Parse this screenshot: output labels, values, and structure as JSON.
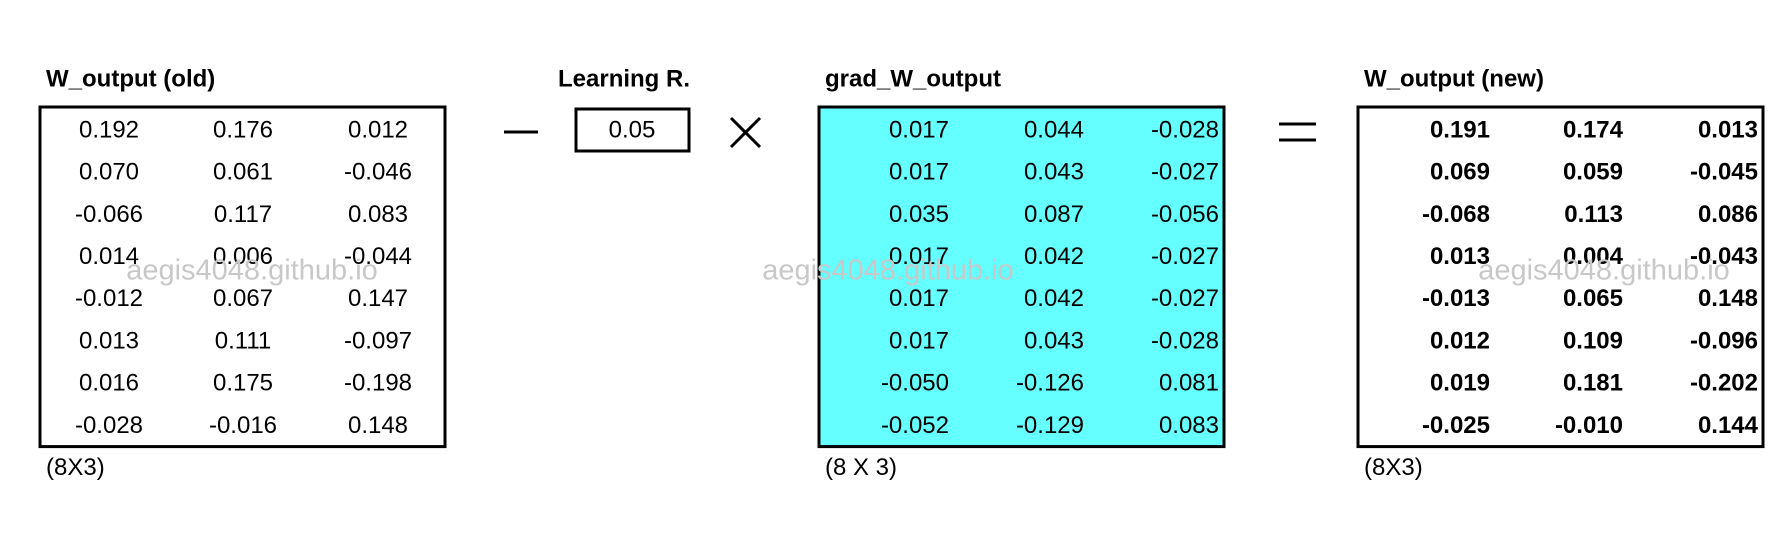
{
  "matrices": [
    {
      "title": "W_output (old)",
      "note": "(8X3)",
      "rows": [
        [
          "0.192",
          "0.176",
          "0.012"
        ],
        [
          "0.070",
          "0.061",
          "-0.046"
        ],
        [
          "-0.066",
          "0.117",
          "0.083"
        ],
        [
          "0.014",
          "0.006",
          "-0.044"
        ],
        [
          "-0.012",
          "0.067",
          "0.147"
        ],
        [
          "0.013",
          "0.111",
          "-0.097"
        ],
        [
          "0.016",
          "0.175",
          "-0.198"
        ],
        [
          "-0.028",
          "-0.016",
          "0.148"
        ]
      ]
    },
    {
      "title": "grad_W_output",
      "note": "(8 X 3)",
      "rows": [
        [
          "0.017",
          "0.044",
          "-0.028"
        ],
        [
          "0.017",
          "0.043",
          "-0.027"
        ],
        [
          "0.035",
          "0.087",
          "-0.056"
        ],
        [
          "0.017",
          "0.042",
          "-0.027"
        ],
        [
          "0.017",
          "0.042",
          "-0.027"
        ],
        [
          "0.017",
          "0.043",
          "-0.028"
        ],
        [
          "-0.050",
          "-0.126",
          "0.081"
        ],
        [
          "-0.052",
          "-0.129",
          "0.083"
        ]
      ]
    },
    {
      "title": "W_output (new)",
      "note": "(8X3)",
      "rows": [
        [
          "0.191",
          "0.174",
          "0.013"
        ],
        [
          "0.069",
          "0.059",
          "-0.045"
        ],
        [
          "-0.068",
          "0.113",
          "0.086"
        ],
        [
          "0.013",
          "0.004",
          "-0.043"
        ],
        [
          "-0.013",
          "0.065",
          "0.148"
        ],
        [
          "0.012",
          "0.109",
          "-0.096"
        ],
        [
          "0.019",
          "0.181",
          "-0.202"
        ],
        [
          "-0.025",
          "-0.010",
          "0.144"
        ]
      ]
    }
  ],
  "learning_rate": {
    "title": "Learning R.",
    "value": "0.05"
  },
  "watermark": "aegis4048.github.io"
}
